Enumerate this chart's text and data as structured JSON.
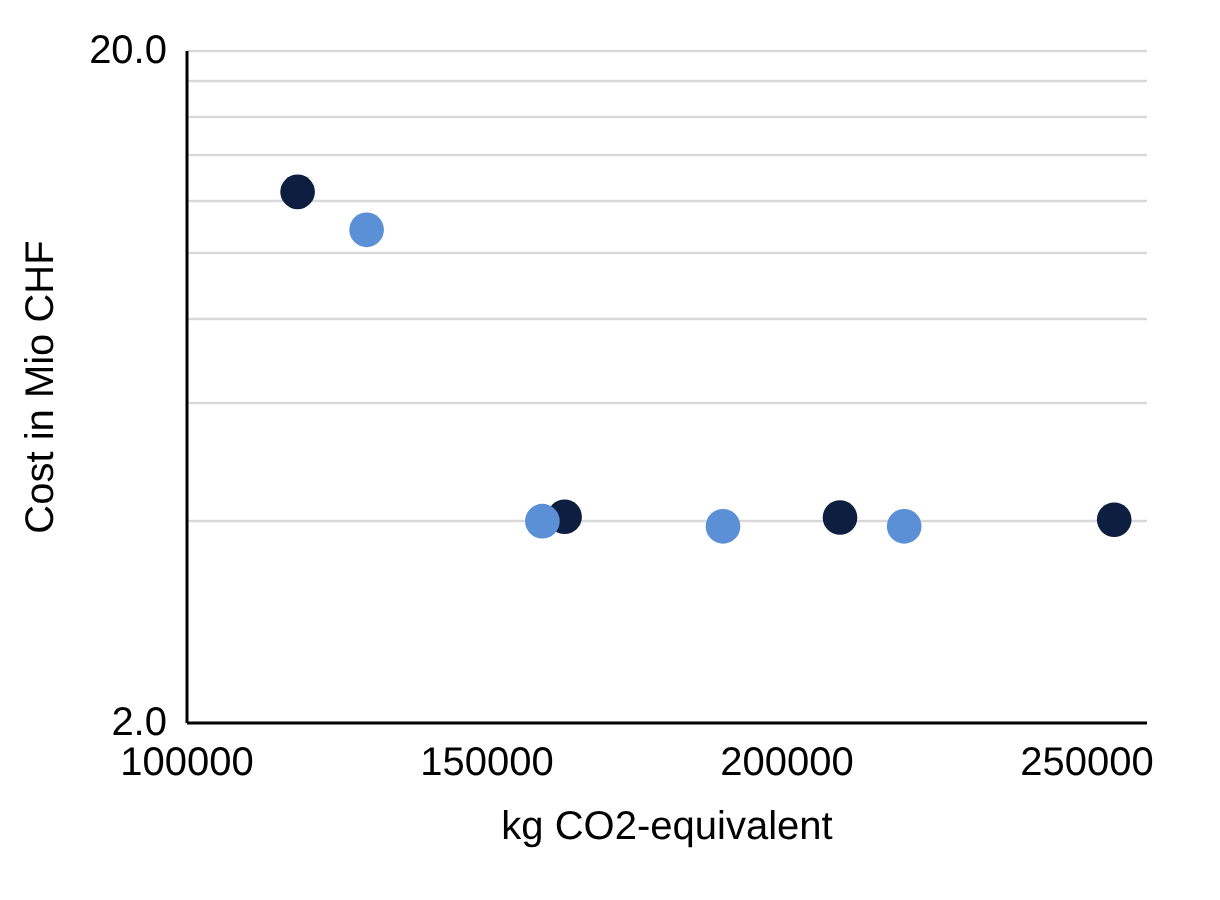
{
  "chart_data": {
    "type": "scatter",
    "xlabel": "kg CO2-equivalent",
    "ylabel": "Cost in Mio CHF",
    "series": [
      {
        "color": "#0e1e40",
        "x": [
          118600,
          163100,
          209000,
          254700
        ],
        "values": [
          12.3,
          4.04,
          4.03,
          4.0
        ]
      },
      {
        "color": "#5b8fd6",
        "x": [
          130100,
          159400,
          189500,
          219700
        ],
        "values": [
          10.8,
          3.98,
          3.91,
          3.91
        ]
      }
    ],
    "xlim": [
      100000,
      260000
    ],
    "xticks": [
      100000,
      150000,
      200000,
      250000
    ],
    "ylim": [
      2,
      20
    ],
    "yticks": [
      {
        "value": 2,
        "label": "2.0"
      },
      {
        "value": 4,
        "label": null
      },
      {
        "value": 6,
        "label": null
      },
      {
        "value": 8,
        "label": null
      },
      {
        "value": 10,
        "label": null
      },
      {
        "value": 12,
        "label": null
      },
      {
        "value": 14,
        "label": null
      },
      {
        "value": 16,
        "label": null
      },
      {
        "value": 18,
        "label": null
      },
      {
        "value": 20,
        "label": "20.0"
      }
    ],
    "log": true,
    "grid": "y",
    "marker": "circle"
  }
}
